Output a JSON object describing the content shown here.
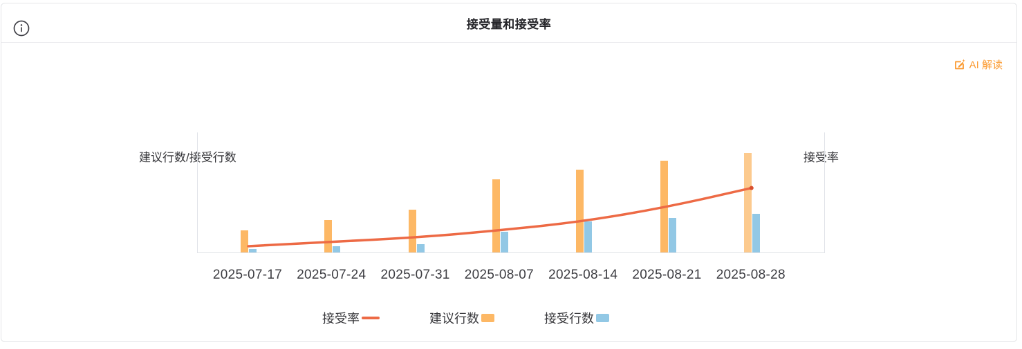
{
  "header": {
    "title": "接受量和接受率"
  },
  "toolbar": {
    "ai_link_label": "AI 解读"
  },
  "colors": {
    "accent_orange": "#fb9b32",
    "bar_suggested": "#fdb865",
    "bar_suggested_last": "#fcca8e",
    "bar_accepted": "#92c8e5",
    "line_rate": "#ed6a45",
    "line_rate_end_dot": "#d94f2e",
    "axis_line": "#e0e3e8",
    "text_dark": "#36363a"
  },
  "chart_data": {
    "type": "bar+line",
    "title": "接受量和接受率",
    "categories": [
      "2025-07-17",
      "2025-07-24",
      "2025-07-31",
      "2025-08-07",
      "2025-08-14",
      "2025-08-21",
      "2025-08-28"
    ],
    "series": [
      {
        "name": "建议行数",
        "type": "bar",
        "color": "#fdb865",
        "values": [
          18.4,
          27.0,
          35.6,
          61.0,
          69.0,
          76.4,
          82.8
        ]
      },
      {
        "name": "接受行数",
        "type": "bar",
        "color": "#92c8e5",
        "values": [
          2.9,
          5.2,
          6.9,
          17.2,
          25.9,
          28.7,
          32.2
        ]
      },
      {
        "name": "接受率",
        "type": "line",
        "color": "#ed6a45",
        "values": [
          5.2,
          8.9,
          12.4,
          18.4,
          25.9,
          37.9,
          53.7
        ]
      }
    ],
    "y_axis_left_name": "建议行数/接受行数",
    "y_axis_right_name": "接受率",
    "ylim_left": [
      0,
      100
    ],
    "ylim_right": [
      0,
      100
    ],
    "tick_labels_visible": false,
    "grid": false,
    "legend_position": "bottom",
    "legend": [
      {
        "label": "接受率",
        "swatch": "line",
        "color": "#ed6a45"
      },
      {
        "label": "建议行数",
        "swatch": "square",
        "color": "#fdb865"
      },
      {
        "label": "接受行数",
        "swatch": "square",
        "color": "#92c8e5"
      }
    ]
  }
}
